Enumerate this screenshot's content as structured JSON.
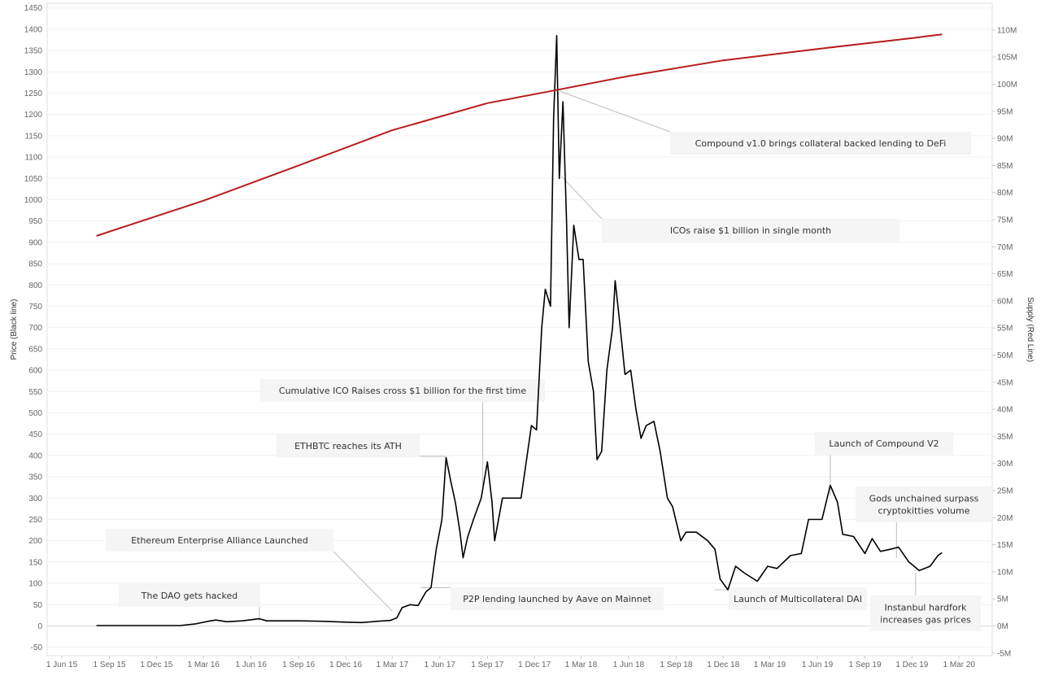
{
  "chart_data": {
    "type": "line",
    "xlabel": "",
    "ylabel_left": "Price (Black line)",
    "ylabel_right": "Supply (Red Line)",
    "x_ticks": [
      "1 Jun 15",
      "1 Sep 15",
      "1 Dec 15",
      "1 Mar 16",
      "1 Jun 16",
      "1 Sep 16",
      "1 Dec 16",
      "1 Mar 17",
      "1 Jun 17",
      "1 Sep 17",
      "1 Dec 17",
      "1 Mar 18",
      "1 Jun 18",
      "1 Sep 18",
      "1 Dec 18",
      "1 Mar 19",
      "1 Jun 19",
      "1 Sep 19",
      "1 Dec 19",
      "1 Mar 20"
    ],
    "ylim_left": [
      -50,
      1450
    ],
    "ylim_right": [
      -5,
      110
    ],
    "left_ticks": [
      -50,
      0,
      50,
      100,
      150,
      200,
      250,
      300,
      350,
      400,
      450,
      500,
      550,
      600,
      650,
      700,
      750,
      800,
      850,
      900,
      950,
      1000,
      1050,
      1100,
      1150,
      1200,
      1250,
      1300,
      1350,
      1400,
      1450
    ],
    "right_ticks": [
      "-5M",
      "0M",
      "5M",
      "10M",
      "15M",
      "20M",
      "25M",
      "30M",
      "35M",
      "40M",
      "45M",
      "50M",
      "55M",
      "60M",
      "65M",
      "70M",
      "75M",
      "80M",
      "85M",
      "90M",
      "95M",
      "100M",
      "105M",
      "110M"
    ],
    "series": [
      {
        "name": "",
        "axis": "left",
        "color": "#000000",
        "points": [
          [
            "2015-08-07",
            1
          ],
          [
            "2015-09-15",
            1
          ],
          [
            "2015-11-01",
            0.9
          ],
          [
            "2016-01-15",
            1
          ],
          [
            "2016-02-15",
            5
          ],
          [
            "2016-03-10",
            11
          ],
          [
            "2016-03-25",
            14
          ],
          [
            "2016-04-15",
            10
          ],
          [
            "2016-05-15",
            12
          ],
          [
            "2016-06-17",
            17
          ],
          [
            "2016-07-01",
            12
          ],
          [
            "2016-09-01",
            12
          ],
          [
            "2016-10-15",
            11
          ],
          [
            "2016-12-01",
            9
          ],
          [
            "2017-01-01",
            8
          ],
          [
            "2017-02-01",
            11
          ],
          [
            "2017-02-25",
            13
          ],
          [
            "2017-03-10",
            19
          ],
          [
            "2017-03-20",
            43
          ],
          [
            "2017-04-05",
            50
          ],
          [
            "2017-04-20",
            48
          ],
          [
            "2017-05-05",
            80
          ],
          [
            "2017-05-15",
            90
          ],
          [
            "2017-05-25",
            180
          ],
          [
            "2017-06-05",
            250
          ],
          [
            "2017-06-13",
            395
          ],
          [
            "2017-06-22",
            340
          ],
          [
            "2017-07-01",
            290
          ],
          [
            "2017-07-10",
            220
          ],
          [
            "2017-07-16",
            160
          ],
          [
            "2017-07-25",
            210
          ],
          [
            "2017-08-05",
            250
          ],
          [
            "2017-08-20",
            300
          ],
          [
            "2017-09-01",
            385
          ],
          [
            "2017-09-10",
            290
          ],
          [
            "2017-09-15",
            200
          ],
          [
            "2017-09-30",
            300
          ],
          [
            "2017-10-20",
            300
          ],
          [
            "2017-11-05",
            300
          ],
          [
            "2017-11-25",
            470
          ],
          [
            "2017-12-05",
            460
          ],
          [
            "2017-12-15",
            700
          ],
          [
            "2017-12-22",
            790
          ],
          [
            "2018-01-01",
            750
          ],
          [
            "2018-01-07",
            1190
          ],
          [
            "2018-01-13",
            1385
          ],
          [
            "2018-01-18",
            1050
          ],
          [
            "2018-01-25",
            1230
          ],
          [
            "2018-02-01",
            950
          ],
          [
            "2018-02-06",
            700
          ],
          [
            "2018-02-15",
            940
          ],
          [
            "2018-02-25",
            860
          ],
          [
            "2018-03-05",
            860
          ],
          [
            "2018-03-15",
            620
          ],
          [
            "2018-03-25",
            550
          ],
          [
            "2018-04-01",
            390
          ],
          [
            "2018-04-10",
            410
          ],
          [
            "2018-04-20",
            600
          ],
          [
            "2018-05-01",
            700
          ],
          [
            "2018-05-06",
            810
          ],
          [
            "2018-05-15",
            710
          ],
          [
            "2018-05-25",
            590
          ],
          [
            "2018-06-05",
            600
          ],
          [
            "2018-06-15",
            510
          ],
          [
            "2018-06-25",
            440
          ],
          [
            "2018-07-05",
            470
          ],
          [
            "2018-07-20",
            480
          ],
          [
            "2018-08-01",
            410
          ],
          [
            "2018-08-15",
            300
          ],
          [
            "2018-08-25",
            280
          ],
          [
            "2018-09-10",
            200
          ],
          [
            "2018-09-20",
            220
          ],
          [
            "2018-10-10",
            220
          ],
          [
            "2018-11-01",
            200
          ],
          [
            "2018-11-15",
            180
          ],
          [
            "2018-11-25",
            110
          ],
          [
            "2018-12-10",
            85
          ],
          [
            "2018-12-25",
            140
          ],
          [
            "2019-01-10",
            125
          ],
          [
            "2019-02-05",
            105
          ],
          [
            "2019-02-25",
            140
          ],
          [
            "2019-03-15",
            135
          ],
          [
            "2019-04-10",
            165
          ],
          [
            "2019-05-01",
            170
          ],
          [
            "2019-05-15",
            250
          ],
          [
            "2019-06-10",
            250
          ],
          [
            "2019-06-26",
            330
          ],
          [
            "2019-07-10",
            290
          ],
          [
            "2019-07-20",
            215
          ],
          [
            "2019-08-10",
            210
          ],
          [
            "2019-09-01",
            170
          ],
          [
            "2019-09-15",
            205
          ],
          [
            "2019-10-01",
            175
          ],
          [
            "2019-10-20",
            180
          ],
          [
            "2019-11-05",
            185
          ],
          [
            "2019-11-25",
            150
          ],
          [
            "2019-12-15",
            130
          ],
          [
            "2020-01-05",
            140
          ],
          [
            "2020-01-20",
            165
          ],
          [
            "2020-01-28",
            172
          ]
        ]
      },
      {
        "name": "",
        "axis": "right",
        "color": "#b71c1c",
        "points": [
          [
            "2015-08-07",
            72.0
          ],
          [
            "2016-03-01",
            78.5
          ],
          [
            "2016-09-01",
            85.0
          ],
          [
            "2017-03-01",
            91.5
          ],
          [
            "2017-09-01",
            96.5
          ],
          [
            "2017-12-31",
            98.7
          ],
          [
            "2018-06-01",
            101.5
          ],
          [
            "2018-12-01",
            104.4
          ],
          [
            "2019-06-01",
            106.5
          ],
          [
            "2019-12-01",
            108.5
          ],
          [
            "2020-01-28",
            109.2
          ]
        ]
      }
    ],
    "annotations": [
      {
        "text": [
          "Compound v1.0 brings collateral backed lending to DeFi"
        ],
        "point": [
          "2018-01-18",
          1255
        ],
        "axis": "left"
      },
      {
        "text": [
          "ICOs raise $1 billion in single month"
        ],
        "point": [
          "2018-01-22",
          1055
        ],
        "axis": "left"
      },
      {
        "text": [
          "Cumulative ICO Raises cross $1 billion for the first time"
        ],
        "point": [
          "2017-08-23",
          330
        ],
        "axis": "left"
      },
      {
        "text": [
          "ETHBTC reaches its ATH"
        ],
        "point": [
          "2017-06-13",
          398
        ],
        "axis": "left"
      },
      {
        "text": [
          "Ethereum Enterprise Alliance Launched"
        ],
        "point": [
          "2017-03-01",
          35
        ],
        "axis": "left"
      },
      {
        "text": [
          "The DAO gets hacked"
        ],
        "point": [
          "2016-06-17",
          12
        ],
        "axis": "left"
      },
      {
        "text": [
          "P2P lending launched by Aave  on Mainnet"
        ],
        "point": [
          "2017-04-25",
          90
        ],
        "axis": "left"
      },
      {
        "text": [
          "Launch of Compound V2"
        ],
        "point": [
          "2019-06-26",
          305
        ],
        "axis": "left"
      },
      {
        "text": [
          "Gods unchained surpass",
          "cryptokitties volume"
        ],
        "point": [
          "2019-11-01",
          160
        ],
        "axis": "left"
      },
      {
        "text": [
          "Launch of Multicollateral DAI"
        ],
        "point": [
          "2018-11-15",
          85
        ],
        "axis": "left"
      },
      {
        "text": [
          "Instanbul hardfork",
          "increases gas prices"
        ],
        "point": [
          "2019-12-08",
          125
        ],
        "axis": "left"
      }
    ],
    "grid": true,
    "legend": "none"
  }
}
